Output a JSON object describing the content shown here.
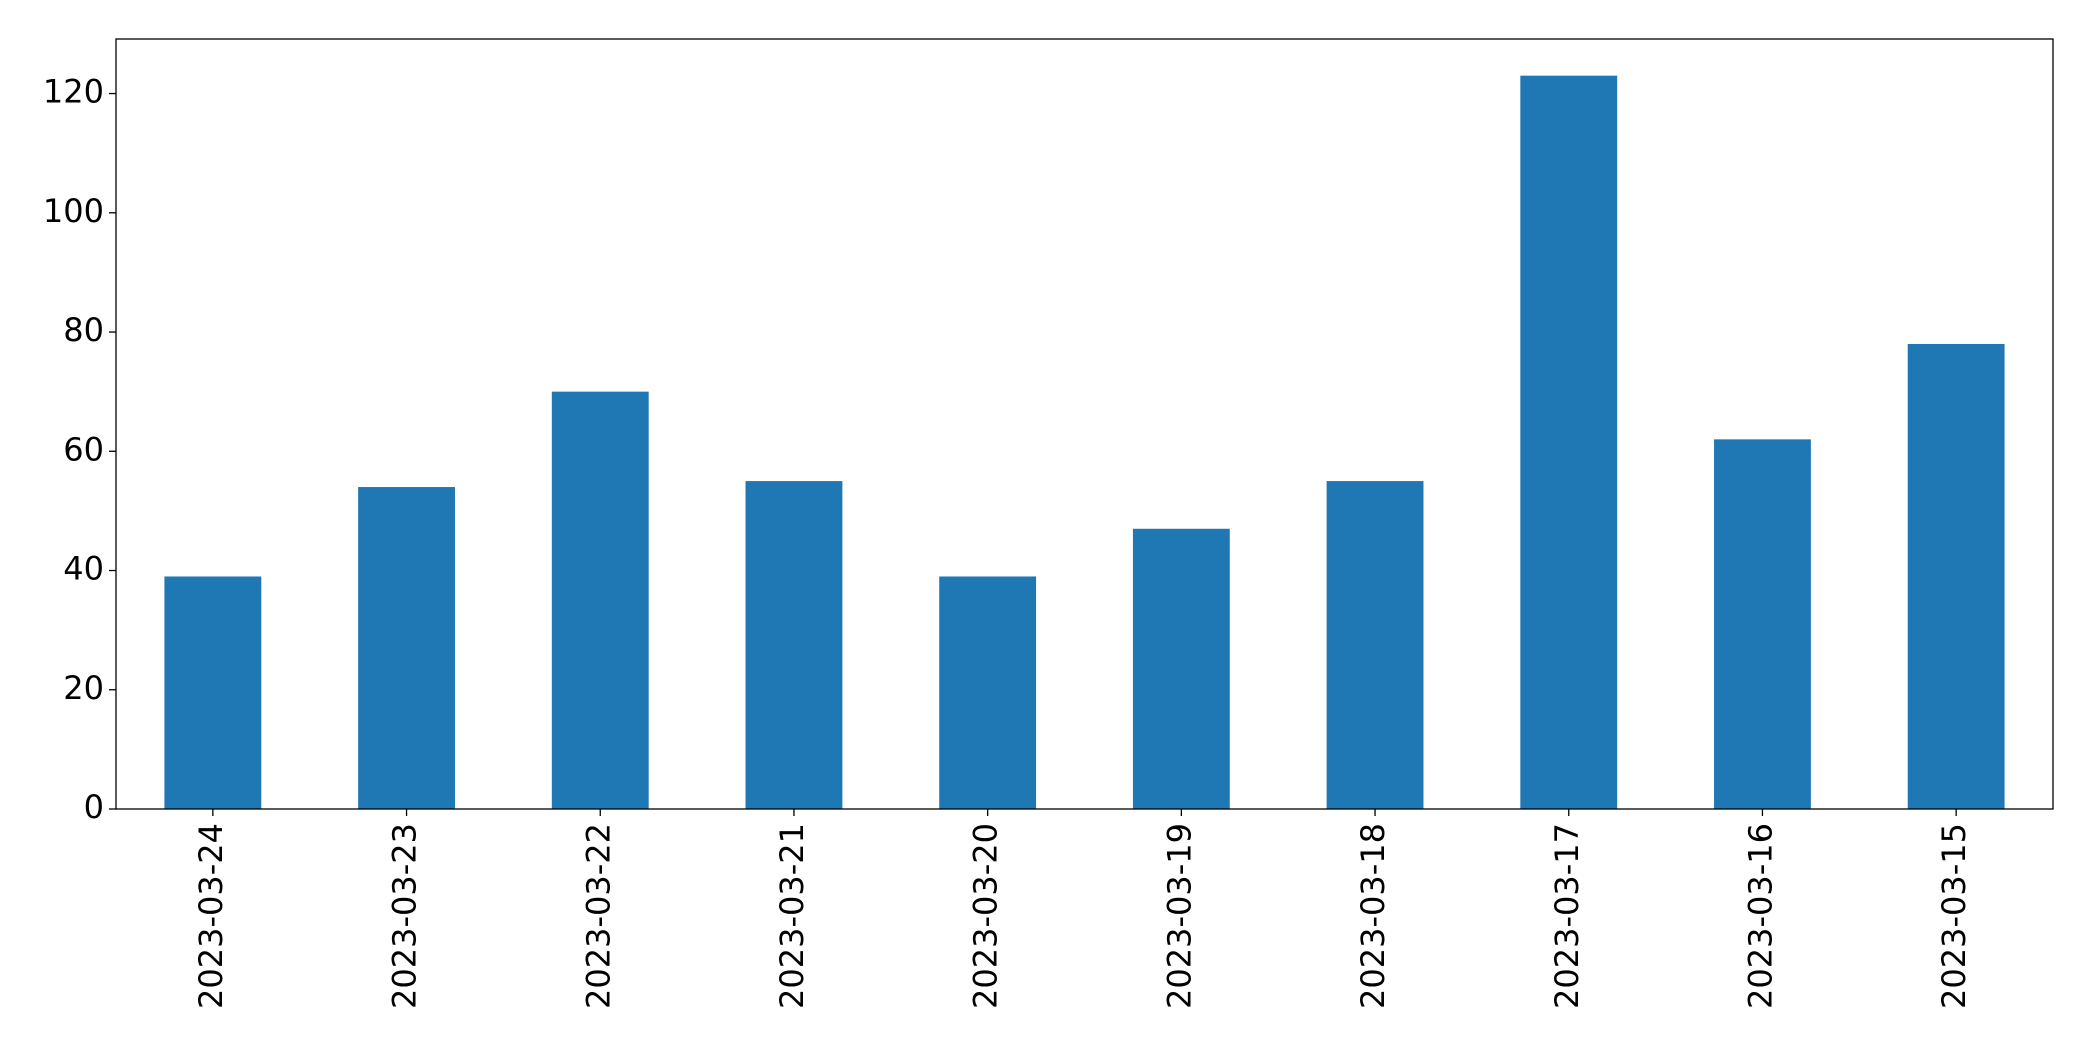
{
  "chart_data": {
    "type": "bar",
    "categories": [
      "2023-03-24",
      "2023-03-23",
      "2023-03-22",
      "2023-03-21",
      "2023-03-20",
      "2023-03-19",
      "2023-03-18",
      "2023-03-17",
      "2023-03-16",
      "2023-03-15"
    ],
    "values": [
      39,
      54,
      70,
      55,
      39,
      47,
      55,
      123,
      62,
      78
    ],
    "color": "#1f77b4",
    "ylim": [
      0,
      129.15
    ],
    "yticks": [
      0,
      20,
      40,
      60,
      80,
      100,
      120
    ],
    "grid": false
  }
}
